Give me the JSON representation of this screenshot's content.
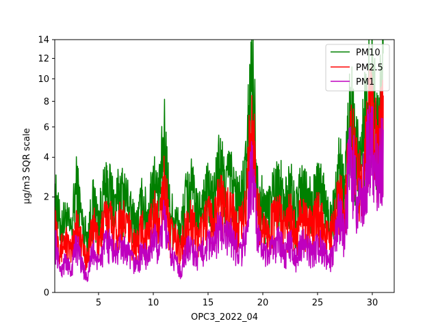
{
  "chart_data": {
    "type": "line",
    "title": "",
    "xlabel": "OPC3_2022_04",
    "ylabel": "µg/m3 SQR scale",
    "yscale": "sqrt",
    "xlim": [
      1,
      32
    ],
    "ylim": [
      0,
      14
    ],
    "xticks": [
      5,
      10,
      15,
      20,
      25,
      30
    ],
    "yticks": [
      0,
      2,
      4,
      6,
      8,
      10,
      12,
      14
    ],
    "grid": false,
    "legend_position": "top-right",
    "series": [
      {
        "name": "PM10",
        "color": "#008000",
        "x": [
          1.0,
          1.5,
          2.0,
          2.5,
          3.0,
          3.5,
          4.0,
          4.5,
          5.0,
          5.5,
          6.0,
          6.5,
          7.0,
          7.5,
          8.0,
          8.5,
          9.0,
          9.5,
          10.0,
          10.5,
          11.0,
          11.5,
          12.0,
          12.5,
          13.0,
          13.5,
          14.0,
          14.5,
          15.0,
          15.5,
          16.0,
          16.5,
          17.0,
          17.5,
          18.0,
          18.5,
          19.0,
          19.5,
          20.0,
          20.5,
          21.0,
          21.5,
          22.0,
          22.5,
          23.0,
          23.5,
          24.0,
          24.5,
          25.0,
          25.5,
          26.0,
          26.5,
          27.0,
          27.5,
          28.0,
          28.5,
          29.0,
          29.5,
          30.0,
          30.5,
          31.0
        ],
        "values": [
          2.6,
          1.2,
          1.5,
          1.0,
          3.2,
          1.3,
          0.8,
          2.2,
          1.4,
          2.6,
          3.0,
          2.1,
          2.8,
          2.5,
          1.6,
          1.2,
          2.3,
          1.5,
          3.5,
          2.2,
          6.4,
          1.8,
          1.5,
          1.0,
          2.5,
          3.0,
          1.6,
          2.3,
          2.8,
          2.2,
          4.5,
          3.3,
          3.8,
          2.6,
          2.2,
          4.2,
          13.5,
          3.5,
          2.0,
          1.8,
          2.9,
          3.3,
          2.0,
          3.1,
          1.6,
          2.9,
          2.5,
          2.0,
          3.0,
          2.5,
          1.5,
          2.2,
          4.2,
          2.8,
          9.2,
          6.0,
          5.0,
          9.8,
          12.5,
          7.5,
          12.5
        ]
      },
      {
        "name": "PM2.5",
        "color": "#ff0000",
        "x": [
          1.0,
          1.5,
          2.0,
          2.5,
          3.0,
          3.5,
          4.0,
          4.5,
          5.0,
          5.5,
          6.0,
          6.5,
          7.0,
          7.5,
          8.0,
          8.5,
          9.0,
          9.5,
          10.0,
          10.5,
          11.0,
          11.5,
          12.0,
          12.5,
          13.0,
          13.5,
          14.0,
          14.5,
          15.0,
          15.5,
          16.0,
          16.5,
          17.0,
          17.5,
          18.0,
          18.5,
          19.0,
          19.5,
          20.0,
          20.5,
          21.0,
          21.5,
          22.0,
          22.5,
          23.0,
          23.5,
          24.0,
          24.5,
          25.0,
          25.5,
          26.0,
          26.5,
          27.0,
          27.5,
          28.0,
          28.5,
          29.0,
          29.5,
          30.0,
          30.5,
          31.0
        ],
        "values": [
          1.6,
          0.5,
          0.8,
          0.4,
          1.4,
          0.6,
          0.3,
          1.3,
          0.7,
          1.4,
          1.6,
          1.1,
          1.5,
          1.3,
          0.9,
          0.6,
          1.2,
          0.8,
          1.9,
          1.2,
          3.2,
          1.0,
          0.8,
          0.5,
          1.2,
          1.5,
          0.8,
          1.2,
          1.6,
          1.2,
          2.8,
          1.8,
          2.2,
          1.4,
          1.2,
          2.0,
          8.5,
          2.0,
          1.1,
          1.0,
          1.5,
          1.8,
          1.1,
          1.7,
          0.9,
          1.6,
          1.4,
          1.1,
          1.7,
          1.4,
          0.8,
          1.2,
          2.6,
          1.6,
          7.2,
          4.2,
          3.5,
          8.0,
          8.5,
          5.5,
          8.5
        ]
      },
      {
        "name": "PM1",
        "color": "#bf00bf",
        "x": [
          1.0,
          1.5,
          2.0,
          2.5,
          3.0,
          3.5,
          4.0,
          4.5,
          5.0,
          5.5,
          6.0,
          6.5,
          7.0,
          7.5,
          8.0,
          8.5,
          9.0,
          9.5,
          10.0,
          10.5,
          11.0,
          11.5,
          12.0,
          12.5,
          13.0,
          13.5,
          14.0,
          14.5,
          15.0,
          15.5,
          16.0,
          16.5,
          17.0,
          17.5,
          18.0,
          18.5,
          19.0,
          19.5,
          20.0,
          20.5,
          21.0,
          21.5,
          22.0,
          22.5,
          23.0,
          23.5,
          24.0,
          24.5,
          25.0,
          25.5,
          26.0,
          26.5,
          27.0,
          27.5,
          28.0,
          28.5,
          29.0,
          29.5,
          30.0,
          30.5,
          31.0
        ],
        "values": [
          0.8,
          0.1,
          0.3,
          0.1,
          0.7,
          0.2,
          0.05,
          0.5,
          0.2,
          0.6,
          0.7,
          0.4,
          0.6,
          0.5,
          0.3,
          0.2,
          0.5,
          0.3,
          0.9,
          0.5,
          1.5,
          0.4,
          0.3,
          0.1,
          0.5,
          0.6,
          0.3,
          0.5,
          0.7,
          0.5,
          1.3,
          0.8,
          1.0,
          0.6,
          0.5,
          0.9,
          4.5,
          0.9,
          0.4,
          0.4,
          0.6,
          0.8,
          0.4,
          0.7,
          0.3,
          0.7,
          0.6,
          0.4,
          0.7,
          0.6,
          0.2,
          0.5,
          1.8,
          0.8,
          6.0,
          2.8,
          2.0,
          5.5,
          6.5,
          3.5,
          5.8
        ]
      }
    ]
  }
}
